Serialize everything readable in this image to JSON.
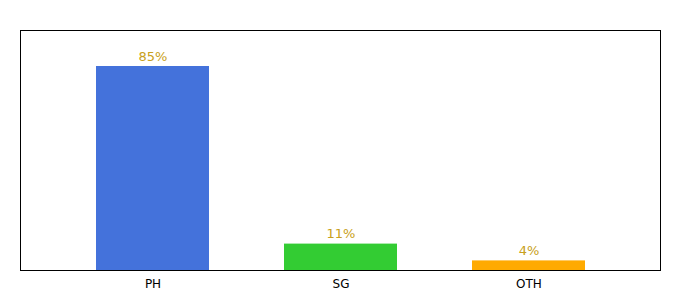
{
  "chart_data": {
    "type": "bar",
    "categories": [
      "PH",
      "SG",
      "OTH"
    ],
    "values": [
      85,
      11,
      4
    ],
    "value_labels": [
      "85%",
      "11%",
      "4%"
    ],
    "colors": [
      "#4472db",
      "#33cc33",
      "#ffaa00"
    ],
    "ylim": [
      0,
      100
    ],
    "data_labels": true,
    "grid": false,
    "tick_labels": "x"
  }
}
